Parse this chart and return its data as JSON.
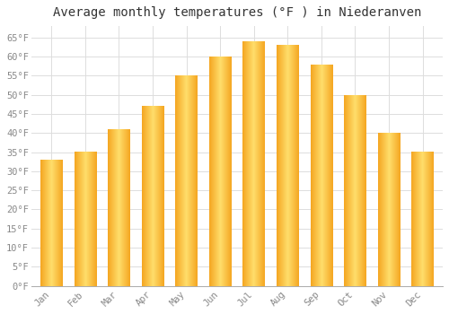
{
  "title": "Average monthly temperatures (°F ) in Niederanven",
  "months": [
    "Jan",
    "Feb",
    "Mar",
    "Apr",
    "May",
    "Jun",
    "Jul",
    "Aug",
    "Sep",
    "Oct",
    "Nov",
    "Dec"
  ],
  "values": [
    33,
    35,
    41,
    47,
    55,
    60,
    64,
    63,
    58,
    50,
    40,
    35
  ],
  "bar_color_center": "#FFD966",
  "bar_color_edge": "#F5A800",
  "ylim": [
    0,
    68
  ],
  "yticks": [
    0,
    5,
    10,
    15,
    20,
    25,
    30,
    35,
    40,
    45,
    50,
    55,
    60,
    65
  ],
  "ytick_labels": [
    "0°F",
    "5°F",
    "10°F",
    "15°F",
    "20°F",
    "25°F",
    "30°F",
    "35°F",
    "40°F",
    "45°F",
    "50°F",
    "55°F",
    "60°F",
    "65°F"
  ],
  "grid_color": "#dddddd",
  "bg_color": "#ffffff",
  "title_fontsize": 10,
  "tick_fontsize": 7.5,
  "bar_width": 0.65
}
